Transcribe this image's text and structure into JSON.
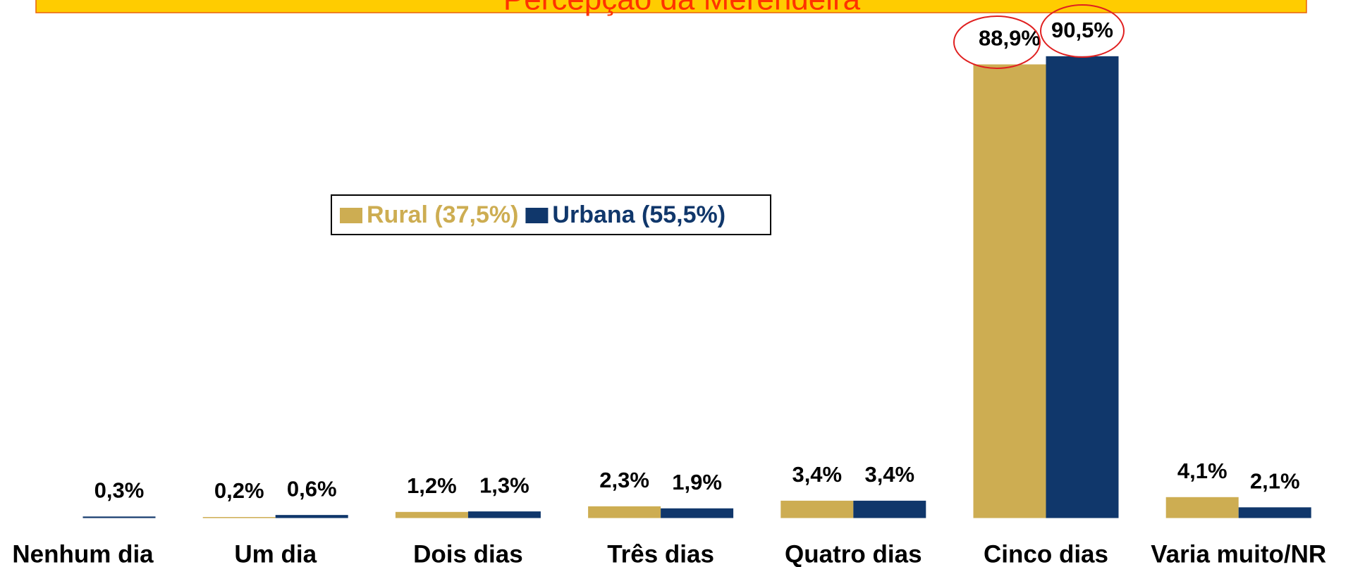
{
  "chart_data": {
    "type": "bar",
    "title": "Percepção da Merendeira",
    "categories": [
      "Nenhum dia",
      "Um dia",
      "Dois dias",
      "Três dias",
      "Quatro dias",
      "Cinco dias",
      "Varia muito/NR"
    ],
    "series": [
      {
        "name": "Rural (37,5%)",
        "color": "#CDAD52",
        "values": [
          null,
          0.2,
          1.2,
          2.3,
          3.4,
          88.9,
          4.1
        ],
        "value_labels": [
          null,
          "0,2%",
          "1,2%",
          "2,3%",
          "3,4%",
          "88,9%",
          "4,1%"
        ]
      },
      {
        "name": "Urbana (55,5%)",
        "color": "#10376B",
        "values": [
          0.3,
          0.6,
          1.3,
          1.9,
          3.4,
          90.5,
          2.1
        ],
        "value_labels": [
          "0,3%",
          "0,6%",
          "1,3%",
          "1,9%",
          "3,4%",
          "90,5%",
          "2,1%"
        ]
      }
    ],
    "ylim": [
      0,
      100
    ]
  }
}
